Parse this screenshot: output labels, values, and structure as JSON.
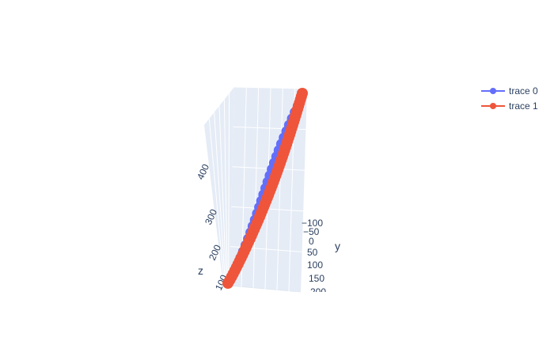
{
  "chart_data": {
    "type": "scatter3d",
    "mode": "lines+markers",
    "legend": {
      "placement": "top-right"
    },
    "grid": true,
    "axes": {
      "x": {
        "label": ""
      },
      "y": {
        "label": "y",
        "ticks": [
          "−100",
          "−50",
          "0",
          "50",
          "100",
          "150",
          "200"
        ]
      },
      "z": {
        "label": "z",
        "ticks": [
          "100",
          "200",
          "300",
          "400"
        ]
      }
    },
    "series": [
      {
        "name": "trace 0",
        "color": "#636efa",
        "z": [
          90,
          470
        ]
      },
      {
        "name": "trace 1",
        "color": "#ef553b",
        "z": [
          90,
          470
        ]
      }
    ]
  }
}
